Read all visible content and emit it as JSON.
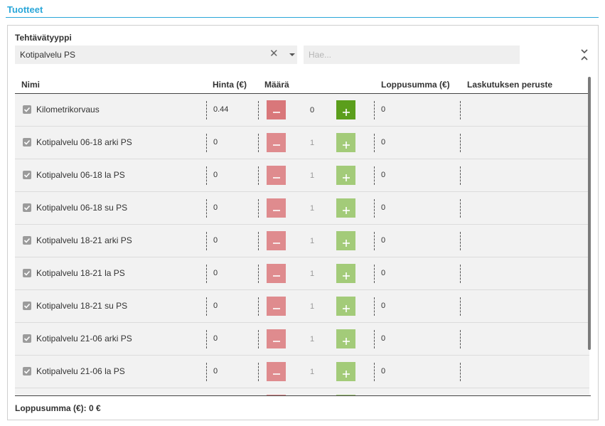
{
  "section": {
    "title": "Tuotteet"
  },
  "filters": {
    "type_label": "Tehtävätyyppi",
    "type_value": "Kotipalvelu PS",
    "search_placeholder": "Hae..."
  },
  "table": {
    "headers": {
      "name": "Nimi",
      "price": "Hinta (€)",
      "qty": "Määrä",
      "total": "Loppusumma (€)",
      "billing": "Laskutuksen peruste"
    },
    "rows": [
      {
        "name": "Kilometrikorvaus",
        "price": "0.44",
        "qty": "0",
        "total": "0",
        "checked": true
      },
      {
        "name": "Kotipalvelu 06-18 arki PS",
        "price": "0",
        "qty": "1",
        "total": "0",
        "checked": true
      },
      {
        "name": "Kotipalvelu 06-18 la PS",
        "price": "0",
        "qty": "1",
        "total": "0",
        "checked": true
      },
      {
        "name": "Kotipalvelu 06-18 su PS",
        "price": "0",
        "qty": "1",
        "total": "0",
        "checked": true
      },
      {
        "name": "Kotipalvelu 18-21 arki PS",
        "price": "0",
        "qty": "1",
        "total": "0",
        "checked": true
      },
      {
        "name": "Kotipalvelu 18-21 la PS",
        "price": "0",
        "qty": "1",
        "total": "0",
        "checked": true
      },
      {
        "name": "Kotipalvelu 18-21 su PS",
        "price": "0",
        "qty": "1",
        "total": "0",
        "checked": true
      },
      {
        "name": "Kotipalvelu 21-06 arki PS",
        "price": "0",
        "qty": "1",
        "total": "0",
        "checked": true
      },
      {
        "name": "Kotipalvelu 21-06 la PS",
        "price": "0",
        "qty": "1",
        "total": "0",
        "checked": true
      },
      {
        "name": "",
        "price": "",
        "qty": "",
        "total": "",
        "checked": false
      }
    ]
  },
  "footer": {
    "total": "Loppusumma (€): 0 €"
  },
  "colors": {
    "accent": "#2aa7d9",
    "minus_active": "#d9777a",
    "minus_inactive": "#df8b8e",
    "plus_active": "#5b9e1c",
    "plus_inactive": "#a3cb79",
    "qty_inactive": "#999999"
  },
  "icons": {
    "clear": "close-icon",
    "dropdown": "chevron-down-icon",
    "collapse": "collapse-icon",
    "checkbox": "check-icon"
  }
}
